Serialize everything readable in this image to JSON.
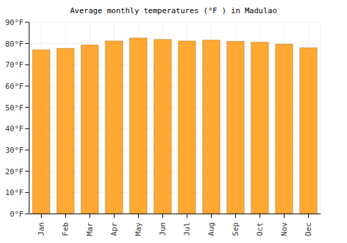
{
  "chart_data": {
    "type": "bar",
    "title": "Average monthly temperatures (°F ) in Madulao",
    "categories": [
      "Jan",
      "Feb",
      "Mar",
      "Apr",
      "May",
      "Jun",
      "Jul",
      "Aug",
      "Sep",
      "Oct",
      "Nov",
      "Dec"
    ],
    "values": [
      77,
      77.7,
      79.3,
      81.2,
      82.6,
      81.9,
      81.2,
      81.6,
      81,
      80.6,
      79.7,
      78
    ],
    "color": "#ffa833",
    "ylim": [
      0,
      90
    ],
    "yticks": [
      {
        "value": 0,
        "label": "0°F"
      },
      {
        "value": 10,
        "label": "10°F"
      },
      {
        "value": 20,
        "label": "20°F"
      },
      {
        "value": 30,
        "label": "30°F"
      },
      {
        "value": 40,
        "label": "40°F"
      },
      {
        "value": 50,
        "label": "50°F"
      },
      {
        "value": 60,
        "label": "60°F"
      },
      {
        "value": 70,
        "label": "70°F"
      },
      {
        "value": 80,
        "label": "80°F"
      },
      {
        "value": 90,
        "label": "90°F"
      }
    ],
    "grid": true
  }
}
